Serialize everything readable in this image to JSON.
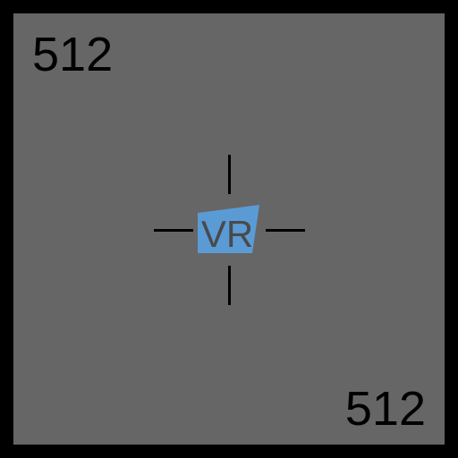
{
  "labels": {
    "top_left": "512",
    "bottom_right": "512"
  },
  "logo": {
    "text": "VR",
    "icon": "vr-logo-icon"
  },
  "colors": {
    "border": "#000000",
    "panel": "#666666",
    "logo_fill": "#5b9bd5",
    "logo_text": "#4a4a4a",
    "crosshair": "#000000"
  }
}
